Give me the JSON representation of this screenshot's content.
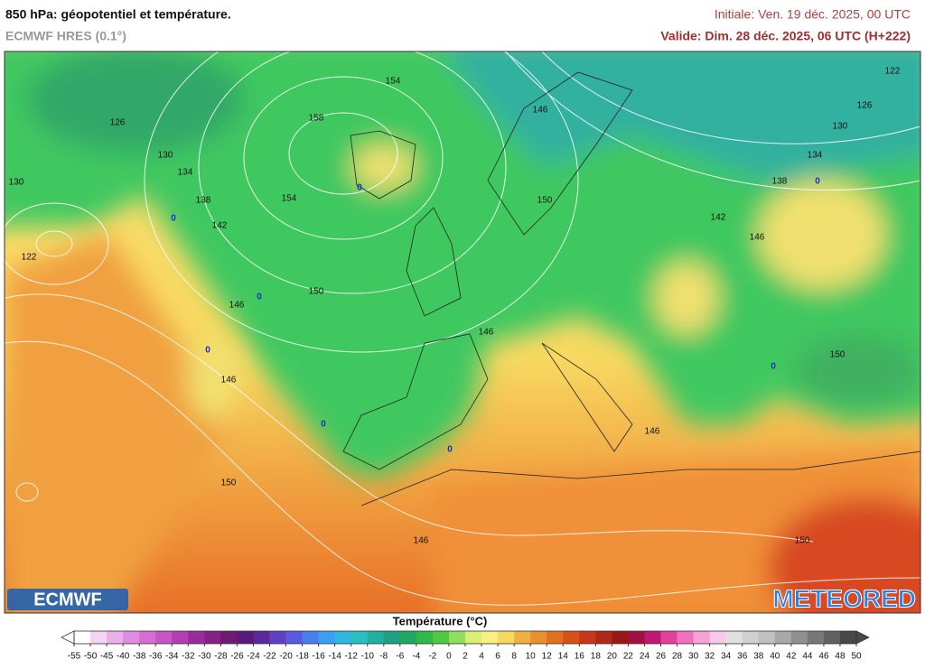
{
  "header": {
    "title": "850 hPa: géopotentiel et température.",
    "model": "ECMWF HRES (0.1°)",
    "initial": "Initiale: Ven. 19 déc. 2025, 00 UTC",
    "valid": "Valide: Dim. 28 déc. 2025, 06 UTC (H+222)"
  },
  "map": {
    "contour_labels": [
      154,
      126,
      130,
      134,
      138,
      142,
      158,
      154,
      146,
      150,
      122,
      126,
      130,
      134,
      138,
      142,
      146,
      150,
      146,
      146,
      146,
      150,
      146,
      150,
      146,
      150,
      130,
      122
    ],
    "isotherm_labels": [
      0,
      0,
      0,
      0,
      0,
      0,
      0,
      0
    ]
  },
  "logos": {
    "left": "ECMWF",
    "right": "METEORED"
  },
  "colorbar": {
    "title": "Température (°C)",
    "ticks": [
      -55,
      -50,
      -45,
      -40,
      -38,
      -36,
      -34,
      -32,
      -30,
      -28,
      -26,
      -24,
      -22,
      -20,
      -18,
      -16,
      -14,
      -12,
      -10,
      -8,
      -6,
      -4,
      -2,
      0,
      2,
      4,
      6,
      8,
      10,
      12,
      14,
      16,
      18,
      20,
      22,
      24,
      26,
      28,
      30,
      32,
      34,
      36,
      38,
      40,
      42,
      44,
      46,
      48,
      50
    ],
    "colors": [
      "#ffffff",
      "#f4d4f4",
      "#eab0ea",
      "#df8ddf",
      "#d46ed4",
      "#c655c6",
      "#b43db4",
      "#9d2a9d",
      "#862086",
      "#6e1a6e",
      "#5b1a7a",
      "#5a2a9a",
      "#6040c0",
      "#5a5ae0",
      "#4a7ef0",
      "#3aa0f0",
      "#2fb8e0",
      "#28c0c0",
      "#20b0a0",
      "#1ea080",
      "#20a860",
      "#30b848",
      "#50c840",
      "#90e060",
      "#d8f070",
      "#f8f080",
      "#f8d860",
      "#f0b040",
      "#e89030",
      "#e07020",
      "#d85018",
      "#c83818",
      "#b02818",
      "#981818",
      "#a01040",
      "#c01870",
      "#e040a0",
      "#f070c0",
      "#f8a0d8",
      "#f8c8e8",
      "#e0e0e0",
      "#d0d0d0",
      "#c0c0c0",
      "#a8a8a8",
      "#909090",
      "#787878",
      "#606060",
      "#484848"
    ]
  }
}
